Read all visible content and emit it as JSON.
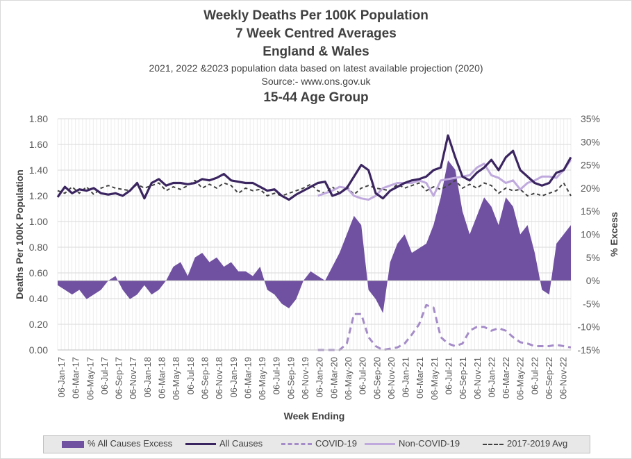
{
  "titles": {
    "title": "Weekly Deaths Per 100K Population",
    "line2": "7 Week Centred Averages",
    "line3": "England & Wales",
    "note": "2021, 2022 &2023 population data based on latest available projection (2020)",
    "source": "Source:- www.ons.gov.uk",
    "subtitle": "15-44 Age Group"
  },
  "chart_data": {
    "type": "line",
    "x_tick_labels": [
      "06-Jan-17",
      "06-Mar-17",
      "06-May-17",
      "06-Jul-17",
      "06-Sep-17",
      "06-Nov-17",
      "06-Jan-18",
      "06-Mar-18",
      "06-May-18",
      "06-Jul-18",
      "06-Sep-18",
      "06-Nov-18",
      "06-Jan-19",
      "06-Mar-19",
      "06-May-19",
      "06-Jul-19",
      "06-Sep-19",
      "06-Nov-19",
      "06-Jan-20",
      "06-Mar-20",
      "06-May-20",
      "06-Jul-20",
      "06-Sep-20",
      "06-Nov-20",
      "06-Jan-21",
      "06-Mar-21",
      "06-May-21",
      "06-Jul-21",
      "06-Sep-21",
      "06-Nov-21",
      "06-Jan-22",
      "06-Mar-22",
      "06-May-22",
      "06-Jul-22",
      "06-Sep-22",
      "06-Nov-22"
    ],
    "xlabel": "Week Ending",
    "ylabel": "Deaths Per 100K Population",
    "y2label": "% Excess",
    "ylim": [
      0,
      1.8
    ],
    "y_ticks": [
      "0.00",
      "0.20",
      "0.40",
      "0.60",
      "0.80",
      "1.00",
      "1.20",
      "1.40",
      "1.60",
      "1.80"
    ],
    "y2lim": [
      -15,
      35
    ],
    "y2_ticks": [
      "-15%",
      "-10%",
      "-5%",
      "0%",
      "5%",
      "10%",
      "15%",
      "20%",
      "25%",
      "30%",
      "35%"
    ],
    "grid": true,
    "legend_position": "bottom",
    "series": [
      {
        "name": "% All Causes Excess",
        "type": "area",
        "color": "#7050a0",
        "unit": "%",
        "x": [
          0,
          1,
          2,
          3,
          4,
          5,
          6,
          7,
          8,
          9,
          10,
          11,
          12,
          13,
          14,
          15,
          16,
          17,
          18,
          19,
          20,
          21,
          22,
          23,
          24,
          25,
          26,
          27,
          28,
          29,
          30,
          31,
          32,
          33,
          34,
          35,
          36,
          37,
          38,
          39,
          40,
          41,
          42,
          43,
          44,
          45,
          46,
          47,
          48,
          49,
          50,
          51,
          52,
          53,
          54,
          55,
          56,
          57,
          58,
          59,
          60,
          61,
          62,
          63,
          64,
          65,
          66,
          67,
          68,
          69,
          70,
          71
        ],
        "values": [
          -1,
          -2,
          -3,
          -2,
          -4,
          -3,
          -2,
          0,
          1,
          -2,
          -4,
          -3,
          -1,
          -3,
          -2,
          0,
          3,
          4,
          1,
          5,
          6,
          4,
          5,
          3,
          4,
          2,
          2,
          1,
          3,
          -2,
          -3,
          -5,
          -6,
          -4,
          0,
          2,
          1,
          0,
          3,
          6,
          10,
          14,
          12,
          -2,
          -4,
          -7,
          4,
          8,
          10,
          6,
          7,
          8,
          12,
          18,
          26,
          24,
          15,
          10,
          14,
          18,
          16,
          12,
          18,
          16,
          10,
          12,
          6,
          -2,
          -3,
          8,
          10,
          12
        ]
      },
      {
        "name": "All Causes",
        "type": "line",
        "color": "#3b2560",
        "x": [
          0,
          1,
          2,
          3,
          4,
          5,
          6,
          7,
          8,
          9,
          10,
          11,
          12,
          13,
          14,
          15,
          16,
          17,
          18,
          19,
          20,
          21,
          22,
          23,
          24,
          25,
          26,
          27,
          28,
          29,
          30,
          31,
          32,
          33,
          34,
          35,
          36,
          37,
          38,
          39,
          40,
          41,
          42,
          43,
          44,
          45,
          46,
          47,
          48,
          49,
          50,
          51,
          52,
          53,
          54,
          55,
          56,
          57,
          58,
          59,
          60,
          61,
          62,
          63,
          64,
          65,
          66,
          67,
          68,
          69,
          70,
          71
        ],
        "values": [
          1.19,
          1.27,
          1.22,
          1.25,
          1.24,
          1.26,
          1.22,
          1.21,
          1.22,
          1.2,
          1.24,
          1.3,
          1.18,
          1.3,
          1.33,
          1.28,
          1.3,
          1.3,
          1.29,
          1.3,
          1.33,
          1.32,
          1.34,
          1.37,
          1.32,
          1.31,
          1.3,
          1.3,
          1.27,
          1.24,
          1.25,
          1.2,
          1.17,
          1.21,
          1.24,
          1.27,
          1.3,
          1.31,
          1.2,
          1.22,
          1.26,
          1.35,
          1.44,
          1.4,
          1.22,
          1.18,
          1.24,
          1.27,
          1.3,
          1.32,
          1.33,
          1.35,
          1.4,
          1.42,
          1.67,
          1.5,
          1.35,
          1.32,
          1.38,
          1.42,
          1.48,
          1.4,
          1.5,
          1.55,
          1.4,
          1.35,
          1.3,
          1.28,
          1.3,
          1.38,
          1.4,
          1.5
        ]
      },
      {
        "name": "COVID-19",
        "type": "line",
        "dashed": true,
        "color": "#a58cc8",
        "x": [
          36,
          37,
          38,
          39,
          40,
          41,
          42,
          43,
          44,
          45,
          46,
          47,
          48,
          49,
          50,
          51,
          52,
          53,
          54,
          55,
          56,
          57,
          58,
          59,
          60,
          61,
          62,
          63,
          64,
          65,
          66,
          67,
          68,
          69,
          70,
          71
        ],
        "values": [
          0.0,
          0.0,
          0.0,
          0.0,
          0.05,
          0.28,
          0.28,
          0.1,
          0.03,
          0.0,
          0.01,
          0.02,
          0.05,
          0.12,
          0.2,
          0.35,
          0.33,
          0.1,
          0.05,
          0.03,
          0.05,
          0.15,
          0.18,
          0.18,
          0.15,
          0.17,
          0.15,
          0.1,
          0.06,
          0.05,
          0.03,
          0.03,
          0.03,
          0.04,
          0.03,
          0.02
        ]
      },
      {
        "name": "Non-COVID-19",
        "type": "line",
        "color": "#bfa9dd",
        "x": [
          36,
          37,
          38,
          39,
          40,
          41,
          42,
          43,
          44,
          45,
          46,
          47,
          48,
          49,
          50,
          51,
          52,
          53,
          54,
          55,
          56,
          57,
          58,
          59,
          60,
          61,
          62,
          63,
          64,
          65,
          66,
          67,
          68,
          69,
          70,
          71
        ],
        "values": [
          1.2,
          1.22,
          1.24,
          1.27,
          1.26,
          1.2,
          1.18,
          1.17,
          1.2,
          1.26,
          1.28,
          1.3,
          1.3,
          1.3,
          1.32,
          1.3,
          1.2,
          1.32,
          1.33,
          1.34,
          1.35,
          1.36,
          1.42,
          1.45,
          1.36,
          1.34,
          1.3,
          1.32,
          1.25,
          1.3,
          1.32,
          1.35,
          1.35,
          1.34,
          1.4,
          1.48
        ]
      },
      {
        "name": "2017-2019 Avg",
        "type": "line",
        "dashed": true,
        "color": "#404040",
        "x": [
          0,
          1,
          2,
          3,
          4,
          5,
          6,
          7,
          8,
          9,
          10,
          11,
          12,
          13,
          14,
          15,
          16,
          17,
          18,
          19,
          20,
          21,
          22,
          23,
          24,
          25,
          26,
          27,
          28,
          29,
          30,
          31,
          32,
          33,
          34,
          35,
          36,
          37,
          38,
          39,
          40,
          41,
          42,
          43,
          44,
          45,
          46,
          47,
          48,
          49,
          50,
          51,
          52,
          53,
          54,
          55,
          56,
          57,
          58,
          59,
          60,
          61,
          62,
          63,
          64,
          65,
          66,
          67,
          68,
          69,
          70,
          71
        ],
        "values": [
          1.24,
          1.22,
          1.27,
          1.22,
          1.27,
          1.21,
          1.26,
          1.28,
          1.26,
          1.25,
          1.24,
          1.29,
          1.26,
          1.28,
          1.3,
          1.24,
          1.27,
          1.25,
          1.28,
          1.32,
          1.26,
          1.29,
          1.26,
          1.3,
          1.28,
          1.22,
          1.26,
          1.24,
          1.25,
          1.2,
          1.22,
          1.2,
          1.22,
          1.24,
          1.26,
          1.29,
          1.24,
          1.22,
          1.27,
          1.22,
          1.27,
          1.21,
          1.26,
          1.28,
          1.26,
          1.25,
          1.24,
          1.29,
          1.26,
          1.28,
          1.3,
          1.24,
          1.27,
          1.25,
          1.28,
          1.32,
          1.26,
          1.29,
          1.26,
          1.3,
          1.28,
          1.22,
          1.26,
          1.24,
          1.25,
          1.2,
          1.22,
          1.2,
          1.22,
          1.24,
          1.3,
          1.2
        ]
      }
    ]
  }
}
